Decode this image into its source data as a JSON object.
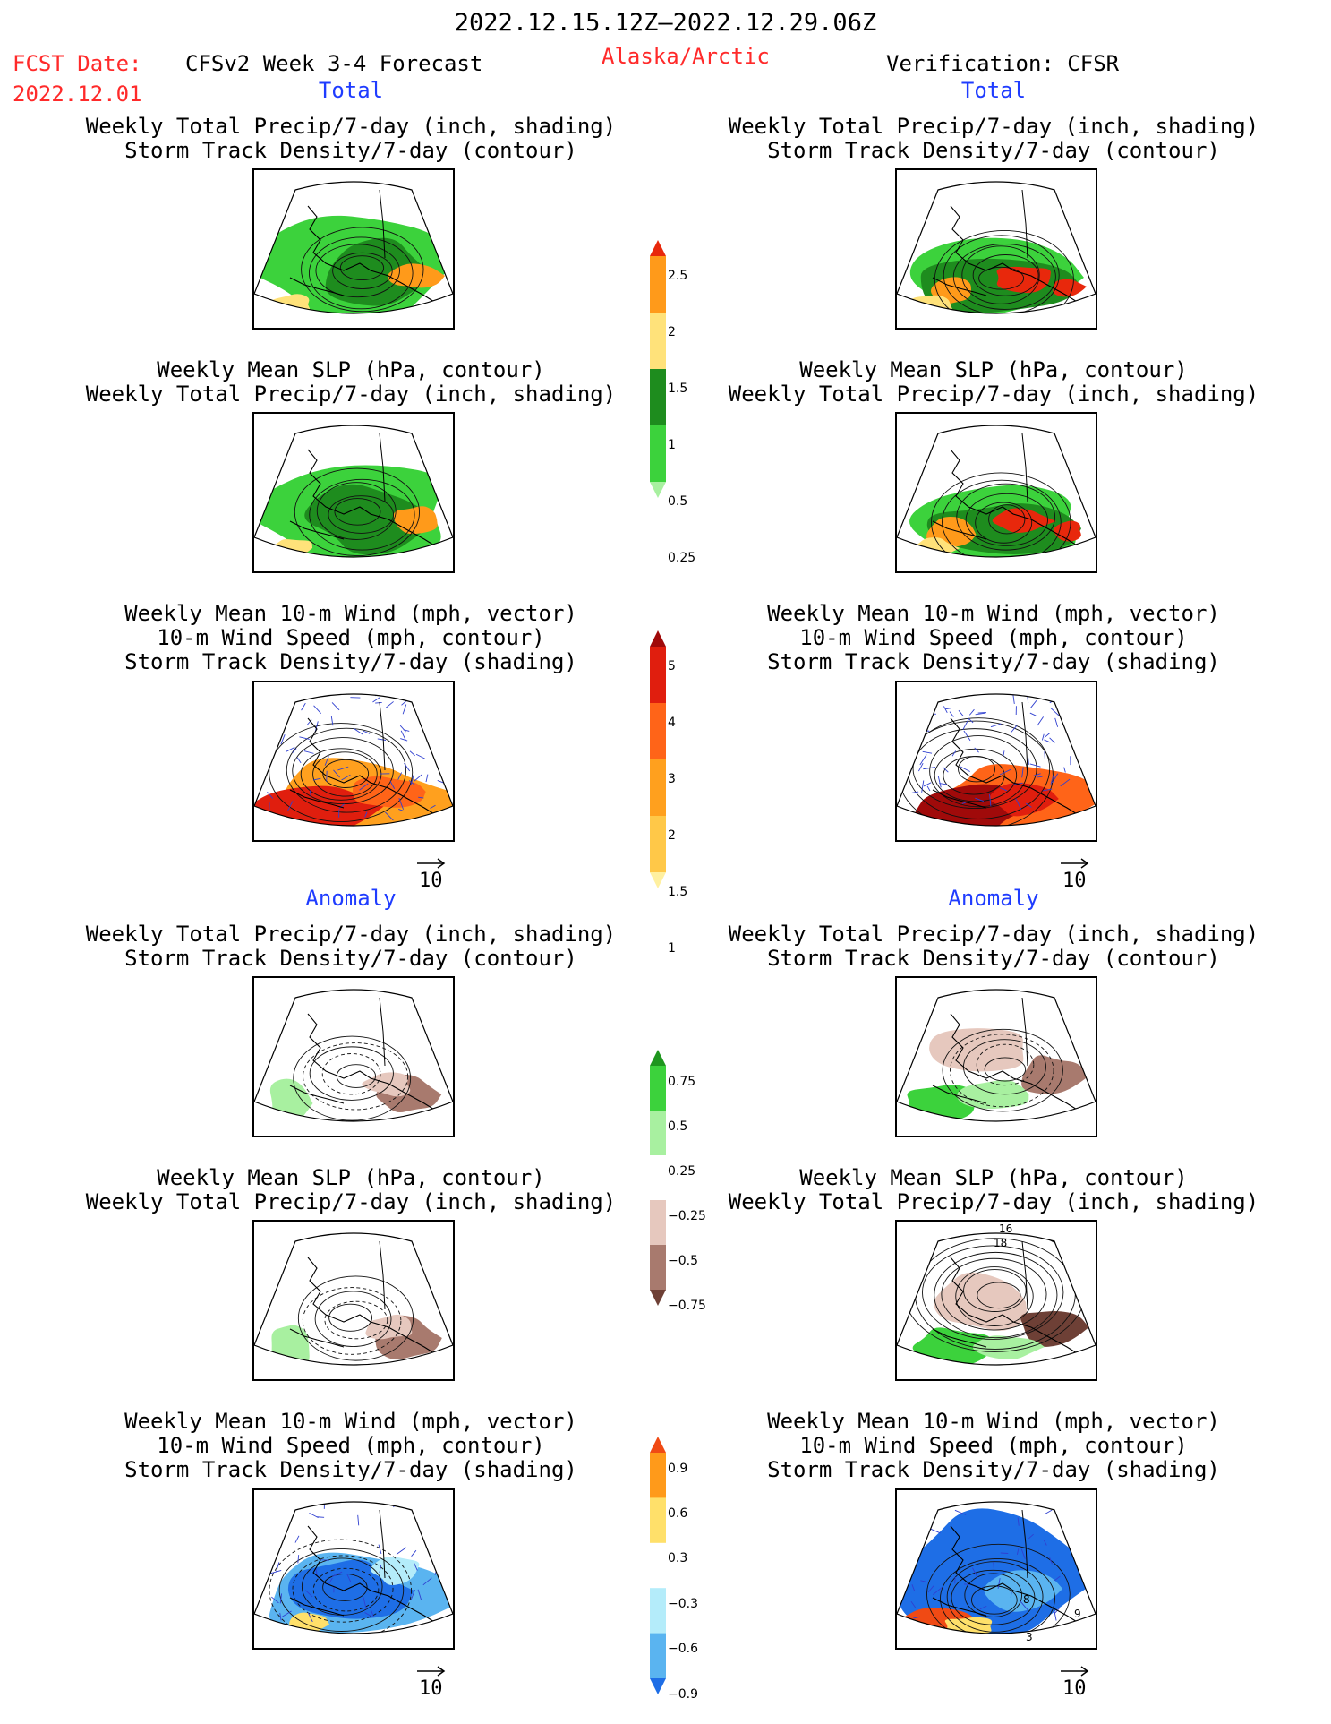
{
  "header": {
    "date_range": "2022.12.15.12Z—2022.12.29.06Z",
    "fcst_date_label": "FCST Date:",
    "fcst_date_value": "2022.12.01",
    "model_label": "CFSv2 Week 3-4 Forecast",
    "region": "Alaska/Arctic",
    "verification": "Verification: CFSR"
  },
  "sections": {
    "total_label": "Total",
    "anomaly_label": "Anomaly"
  },
  "titles": {
    "precip_storm": [
      "Weekly Total Precip/7-day (inch, shading)",
      "Storm Track Density/7-day (contour)"
    ],
    "slp_precip": [
      "Weekly Mean SLP (hPa, contour)",
      "Weekly Total Precip/7-day (inch, shading)"
    ],
    "wind_storm": [
      "Weekly Mean 10-m Wind (mph, vector)",
      "10-m Wind Speed (mph, contour)",
      "Storm Track Density/7-day (shading)"
    ]
  },
  "vector_key": "10",
  "colorbars": {
    "precip_total": {
      "labels": [
        "2.5",
        "2",
        "1.5",
        "1",
        "0.5",
        "0.25"
      ],
      "colors": [
        "#e8280c",
        "#ff9a1a",
        "#ffe27a",
        "#1e8c1e",
        "#3cd23c",
        "#a8f0a0"
      ]
    },
    "storm_total": {
      "labels": [
        "5",
        "4",
        "3",
        "2",
        "1.5",
        "1"
      ],
      "colors": [
        "#a00a0a",
        "#e01e0e",
        "#ff6418",
        "#ffa01e",
        "#ffc848",
        "#fff0a0"
      ]
    },
    "precip_anom": {
      "labels": [
        "0.75",
        "0.5",
        "0.25",
        "−0.25",
        "−0.5",
        "−0.75"
      ],
      "colors": [
        "#1e961e",
        "#3cd23c",
        "#a8f0a0",
        "#ffffff",
        "#e6c8be",
        "#a87a6e",
        "#6e4036"
      ]
    },
    "storm_anom": {
      "labels": [
        "0.9",
        "0.6",
        "0.3",
        "−0.3",
        "−0.6",
        "−0.9"
      ],
      "colors": [
        "#f04a14",
        "#ff9a1a",
        "#ffe06a",
        "#ffffff",
        "#b4ecfa",
        "#5ab4f0",
        "#1e6ee6"
      ]
    }
  },
  "contour_labels": [
    "16",
    "18",
    "8",
    "9",
    "3"
  ]
}
